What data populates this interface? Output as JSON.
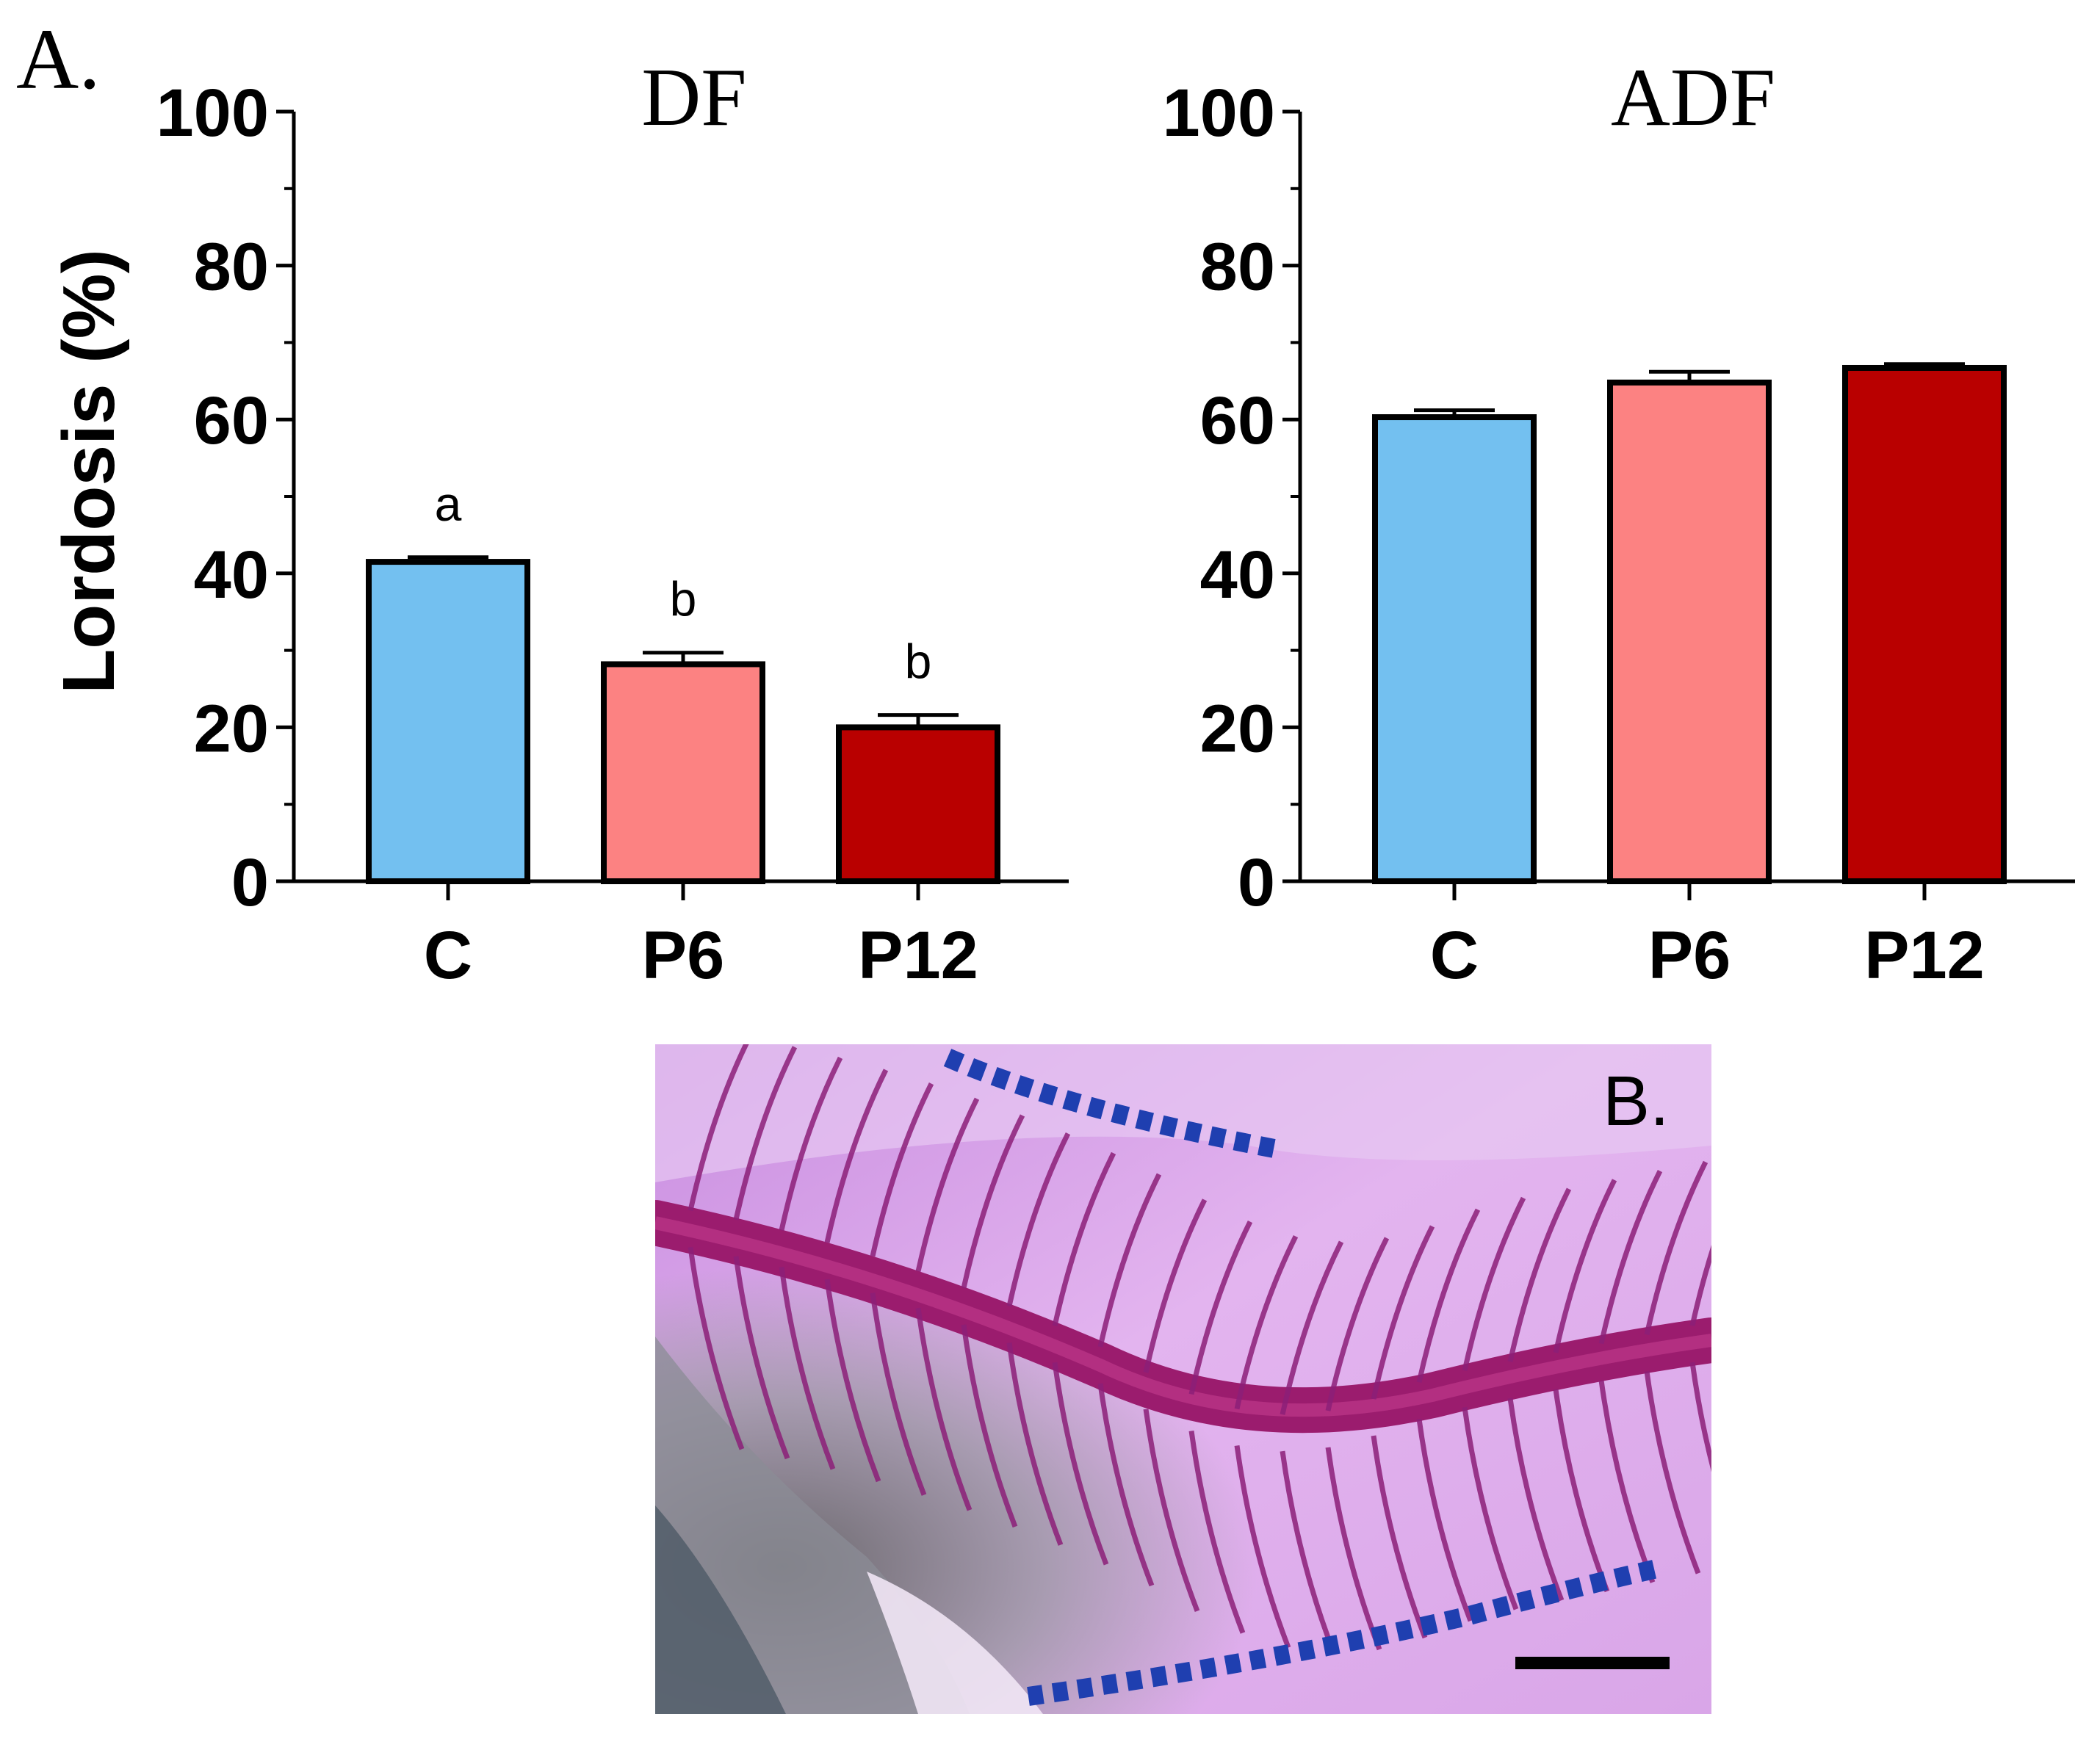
{
  "panel_a_label": "A.",
  "panel_b_label": "B.",
  "colors": {
    "C": "#73c0f0",
    "P6": "#fc8282",
    "P12": "#b90000"
  },
  "chart_data": [
    {
      "type": "bar",
      "title": "DF",
      "ylabel": "Lordosis (%)",
      "xlabel": "",
      "ylim": [
        0,
        100
      ],
      "yticks": [
        "0",
        "20",
        "40",
        "60",
        "80",
        "100"
      ],
      "categories": [
        "C",
        "P6",
        "P12"
      ],
      "values": [
        41.5,
        28.2,
        20.0
      ],
      "errors": [
        0.6,
        1.5,
        1.6
      ],
      "significance": [
        "a",
        "b",
        "b"
      ],
      "error_bars": true,
      "grid": false,
      "legend": "none"
    },
    {
      "type": "bar",
      "title": "ADF",
      "ylabel": "",
      "xlabel": "",
      "ylim": [
        0,
        100
      ],
      "yticks": [
        "0",
        "20",
        "40",
        "60",
        "80",
        "100"
      ],
      "categories": [
        "C",
        "P6",
        "P12"
      ],
      "values": [
        60.3,
        64.8,
        66.7
      ],
      "errors": [
        0.9,
        1.4,
        0.5
      ],
      "significance": [],
      "error_bars": true,
      "grid": false,
      "legend": "none"
    }
  ],
  "photo": {
    "description_icon": "stained-fish-skeleton-photo"
  }
}
